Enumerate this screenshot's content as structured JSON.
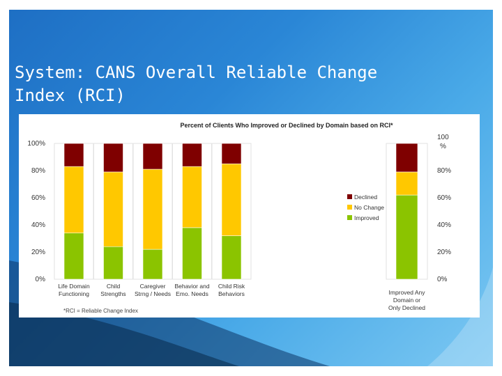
{
  "slide": {
    "title_line1": "System: CANS Overall Reliable Change",
    "title_line2": "Index (RCI)"
  },
  "chart_data": {
    "type": "bar",
    "stacked": true,
    "percent": true,
    "title": "Percent of Clients Who Improved or Declined by Domain based on RCI*",
    "footnote": "*RCI = Reliable Change Index",
    "categories": [
      [
        "Life Domain",
        "Functioning"
      ],
      [
        "Child",
        "Strengths"
      ],
      [
        "Caregiver",
        "Strng / Needs"
      ],
      [
        "Behavior and",
        "Emo. Needs"
      ],
      [
        "Child Risk",
        "Behaviors"
      ]
    ],
    "series": [
      {
        "name": "Improved",
        "color": "#8bc400",
        "values": [
          34,
          24,
          22,
          38,
          32
        ]
      },
      {
        "name": "No Change",
        "color": "#ffc800",
        "values": [
          49,
          55,
          59,
          45,
          53
        ]
      },
      {
        "name": "Declined",
        "color": "#7f0000",
        "values": [
          17,
          21,
          19,
          17,
          15
        ]
      }
    ],
    "legend": [
      "Declined",
      "No Change",
      "Improved"
    ],
    "legend_position": "right",
    "y_ticks": [
      "0%",
      "20%",
      "40%",
      "60%",
      "80%",
      "100%"
    ],
    "ylim": [
      0,
      100
    ],
    "secondary": {
      "category": [
        "Improved Any",
        "Domain or",
        "Only Declined"
      ],
      "values": {
        "Improved": 62,
        "No Change": 17,
        "Declined": 21
      },
      "y_ticks": [
        "0%",
        "20%",
        "40%",
        "60%",
        "80%"
      ],
      "top_tick": [
        "100",
        "%"
      ]
    }
  }
}
